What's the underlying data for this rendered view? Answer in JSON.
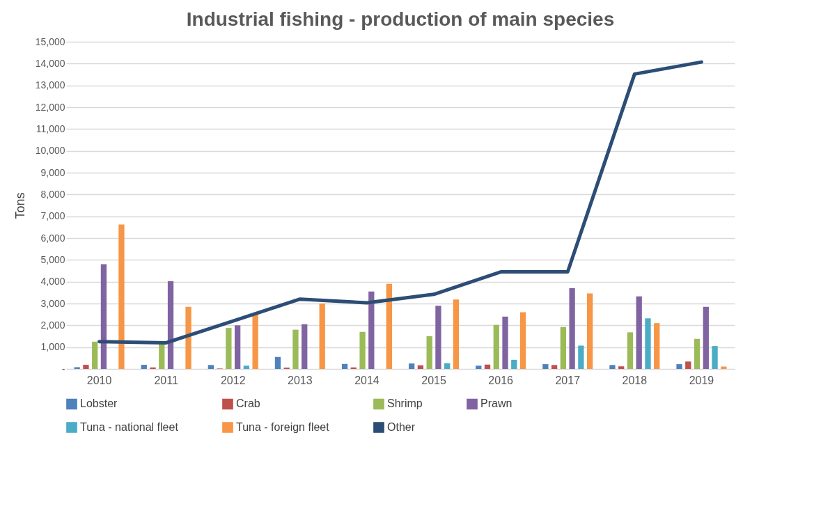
{
  "chart_data": {
    "type": "bar",
    "title": "Industrial fishing - production of main species",
    "ylabel": "Tons",
    "categories": [
      "2010",
      "2011",
      "2012",
      "2013",
      "2014",
      "2015",
      "2016",
      "2017",
      "2018",
      "2019"
    ],
    "series": [
      {
        "name": "Lobster",
        "color": "#4f81bd",
        "values": [
          80,
          190,
          180,
          550,
          230,
          250,
          150,
          220,
          180,
          220
        ]
      },
      {
        "name": "Crab",
        "color": "#c0504d",
        "values": [
          190,
          70,
          20,
          60,
          70,
          170,
          200,
          180,
          120,
          340
        ]
      },
      {
        "name": "Shrimp",
        "color": "#9bbb59",
        "values": [
          1250,
          1150,
          1880,
          1800,
          1700,
          1500,
          2020,
          1920,
          1680,
          1380
        ]
      },
      {
        "name": "Prawn",
        "color": "#8064a2",
        "values": [
          4800,
          4020,
          2000,
          2050,
          3550,
          2900,
          2400,
          3700,
          3330,
          2850
        ]
      },
      {
        "name": "Tuna - national fleet",
        "color": "#4bacc6",
        "values": [
          null,
          null,
          150,
          null,
          null,
          260,
          420,
          1070,
          2320,
          1050
        ]
      },
      {
        "name": "Tuna - foreign fleet",
        "color": "#f79646",
        "values": [
          6620,
          2850,
          2500,
          3000,
          3900,
          3180,
          2600,
          3460,
          2100,
          110
        ]
      },
      {
        "name": "Other",
        "type": "line",
        "color": "#2c4d75",
        "values": [
          1250,
          1200,
          2200,
          3200,
          3030,
          3420,
          4450,
          4450,
          13520,
          14070
        ]
      }
    ],
    "ylim": [
      0,
      15000
    ],
    "yticks": [
      {
        "value": 0,
        "label": "-"
      },
      {
        "value": 1000,
        "label": "1,000"
      },
      {
        "value": 2000,
        "label": "2,000"
      },
      {
        "value": 3000,
        "label": "3,000"
      },
      {
        "value": 4000,
        "label": "4,000"
      },
      {
        "value": 5000,
        "label": "5,000"
      },
      {
        "value": 6000,
        "label": "6,000"
      },
      {
        "value": 7000,
        "label": "7,000"
      },
      {
        "value": 8000,
        "label": "8,000"
      },
      {
        "value": 9000,
        "label": "9,000"
      },
      {
        "value": 10000,
        "label": "10,000"
      },
      {
        "value": 11000,
        "label": "11,000"
      },
      {
        "value": 12000,
        "label": "12,000"
      },
      {
        "value": 13000,
        "label": "13,000"
      },
      {
        "value": 14000,
        "label": "14,000"
      },
      {
        "value": 15000,
        "label": "15,000"
      }
    ],
    "grid": "y",
    "legend": "bottom",
    "marker": "none",
    "line_style": "solid"
  }
}
